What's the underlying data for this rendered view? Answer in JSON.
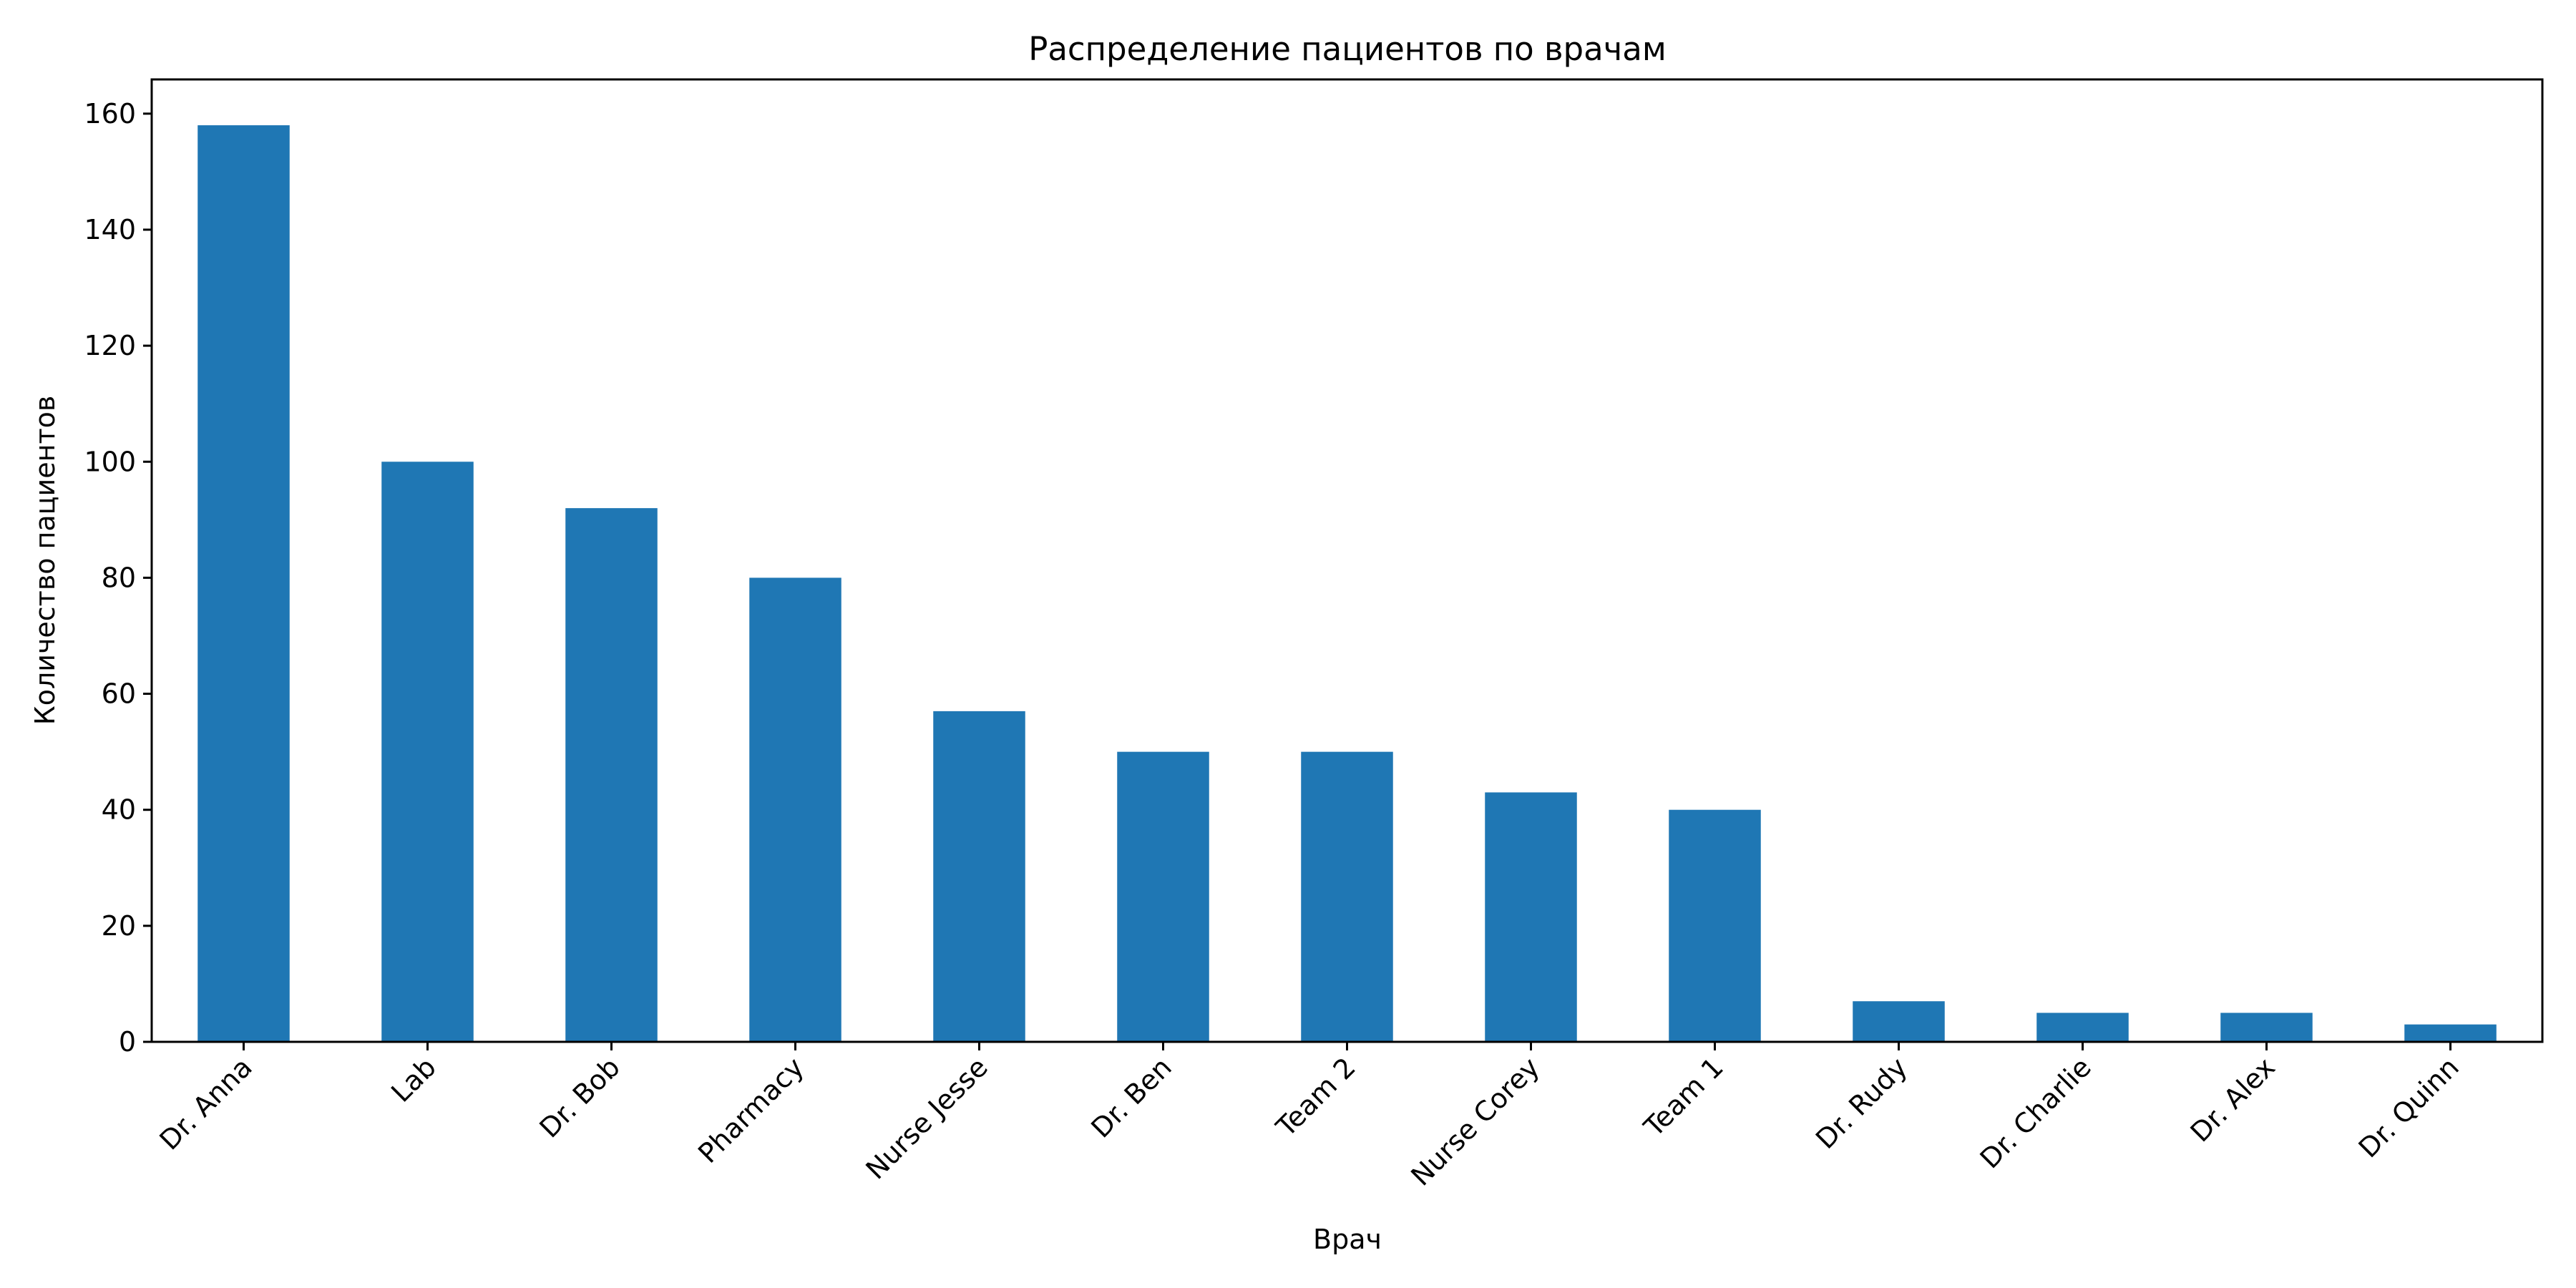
{
  "chart_data": {
    "type": "bar",
    "title": "Распределение пациентов по врачам",
    "xlabel": "Врач",
    "ylabel": "Количество пациентов",
    "categories": [
      "Dr. Anna",
      "Lab",
      "Dr. Bob",
      "Pharmacy",
      "Nurse Jesse",
      "Dr. Ben",
      "Team 2",
      "Nurse Corey",
      "Team 1",
      "Dr. Rudy",
      "Dr. Charlie",
      "Dr. Alex",
      "Dr. Quinn"
    ],
    "values": [
      158,
      100,
      92,
      80,
      57,
      50,
      50,
      43,
      40,
      7,
      5,
      5,
      3
    ],
    "ylim": [
      0,
      165.9
    ],
    "yticks": [
      0,
      20,
      40,
      60,
      80,
      100,
      120,
      140,
      160
    ],
    "grid": false,
    "legend": "none",
    "colors": {
      "bar": "#1f77b4",
      "axes": "#000000",
      "background": "#ffffff"
    }
  }
}
